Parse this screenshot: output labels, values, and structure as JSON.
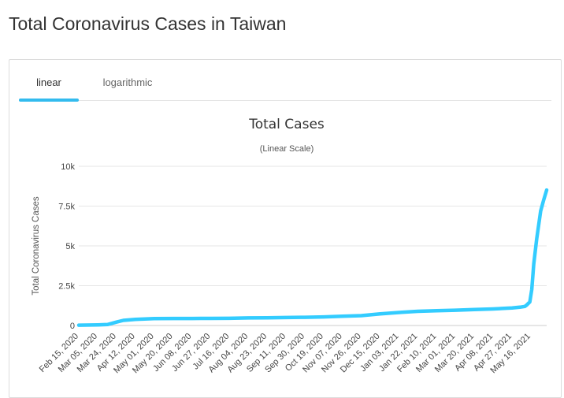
{
  "page": {
    "title": "Total Coronavirus Cases in Taiwan"
  },
  "tabs": [
    {
      "label": "linear",
      "active": true
    },
    {
      "label": "logarithmic",
      "active": false
    }
  ],
  "chart_data": {
    "type": "line",
    "title": "Total Cases",
    "subtitle": "(Linear Scale)",
    "ylabel": "Total Coronavirus Cases",
    "xlabel": "",
    "ylim": [
      0,
      10000
    ],
    "y_ticks": [
      "0",
      "2.5k",
      "5k",
      "7.5k",
      "10k"
    ],
    "y_tick_values": [
      0,
      2500,
      5000,
      7500,
      10000
    ],
    "grid": true,
    "line_color": "#33ccff",
    "x_tick_labels": [
      "Feb 15, 2020",
      "Mar 05, 2020",
      "Mar 24, 2020",
      "Apr 12, 2020",
      "May 01, 2020",
      "May 20, 2020",
      "Jun 08, 2020",
      "Jun 27, 2020",
      "Jul 16, 2020",
      "Aug 04, 2020",
      "Aug 23, 2020",
      "Sep 11, 2020",
      "Sep 30, 2020",
      "Oct 19, 2020",
      "Nov 07, 2020",
      "Nov 26, 2020",
      "Dec 15, 2020",
      "Jan 03, 2021",
      "Jan 22, 2021",
      "Feb 10, 2021",
      "Mar 01, 2021",
      "Mar 20, 2021",
      "Apr 08, 2021",
      "Apr 27, 2021",
      "May 16, 2021"
    ],
    "x_start": "2020-02-15",
    "x_end": "2021-06-01",
    "series": [
      {
        "points": [
          [
            "2020-02-15",
            18
          ],
          [
            "2020-03-05",
            42
          ],
          [
            "2020-03-15",
            60
          ],
          [
            "2020-03-24",
            215
          ],
          [
            "2020-03-31",
            320
          ],
          [
            "2020-04-12",
            385
          ],
          [
            "2020-05-01",
            429
          ],
          [
            "2020-05-20",
            440
          ],
          [
            "2020-06-08",
            443
          ],
          [
            "2020-06-27",
            447
          ],
          [
            "2020-07-16",
            452
          ],
          [
            "2020-08-04",
            476
          ],
          [
            "2020-08-23",
            487
          ],
          [
            "2020-09-11",
            499
          ],
          [
            "2020-09-30",
            514
          ],
          [
            "2020-10-19",
            541
          ],
          [
            "2020-11-07",
            578
          ],
          [
            "2020-11-26",
            618
          ],
          [
            "2020-12-15",
            733
          ],
          [
            "2021-01-03",
            819
          ],
          [
            "2021-01-22",
            889
          ],
          [
            "2021-02-10",
            928
          ],
          [
            "2021-03-01",
            960
          ],
          [
            "2021-03-20",
            1005
          ],
          [
            "2021-04-08",
            1040
          ],
          [
            "2021-04-27",
            1100
          ],
          [
            "2021-05-05",
            1150
          ],
          [
            "2021-05-10",
            1200
          ],
          [
            "2021-05-12",
            1290
          ],
          [
            "2021-05-15",
            1480
          ],
          [
            "2021-05-17",
            2260
          ],
          [
            "2021-05-19",
            3860
          ],
          [
            "2021-05-22",
            5460
          ],
          [
            "2021-05-26",
            7200
          ],
          [
            "2021-05-29",
            7880
          ],
          [
            "2021-06-01",
            8510
          ]
        ]
      }
    ]
  }
}
